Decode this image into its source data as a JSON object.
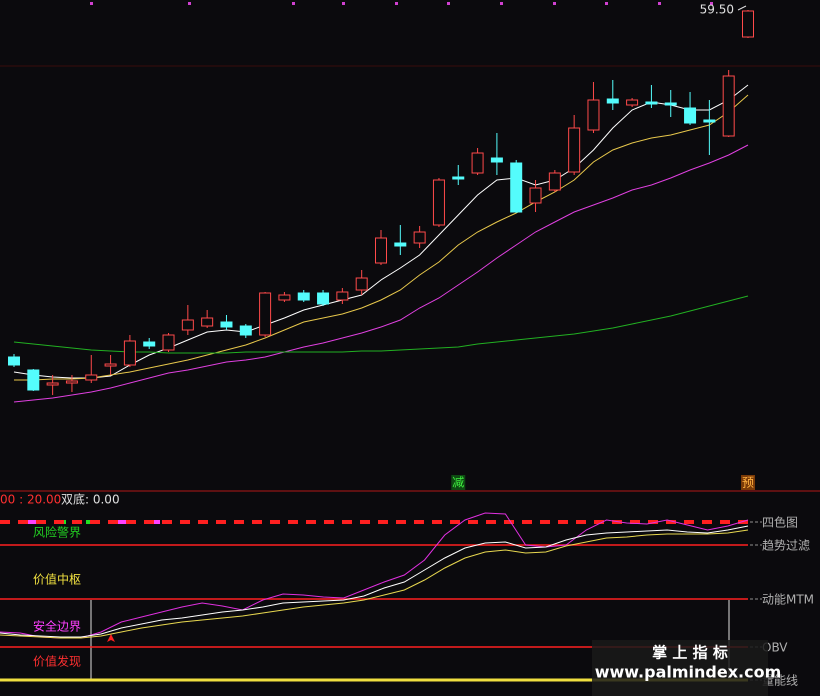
{
  "chart_data": [
    {
      "type": "candlestick",
      "categories": [
        null,
        null,
        null,
        null,
        null,
        null,
        null,
        null,
        null,
        null,
        null,
        null,
        null,
        null,
        null,
        null,
        null,
        null,
        null,
        null,
        null,
        null,
        null,
        null,
        null,
        null,
        null,
        null,
        null,
        null,
        null,
        null,
        null,
        null,
        null,
        null,
        null,
        null,
        null
      ],
      "open": [
        42.15,
        41.5,
        40.75,
        40.85,
        41.0,
        41.7,
        41.75,
        42.9,
        42.5,
        43.5,
        43.7,
        43.9,
        43.7,
        43.25,
        45.0,
        45.35,
        45.35,
        45.0,
        45.5,
        46.85,
        47.85,
        47.85,
        48.75,
        51.15,
        51.35,
        52.1,
        51.85,
        49.85,
        50.5,
        51.4,
        53.5,
        55.05,
        54.75,
        54.9,
        54.85,
        54.6,
        54.0,
        53.2,
        58.15
      ],
      "high": [
        42.3,
        41.55,
        41.25,
        41.25,
        42.25,
        42.25,
        43.25,
        43.1,
        43.35,
        44.75,
        44.5,
        44.25,
        43.8,
        45.4,
        45.4,
        45.5,
        45.5,
        45.6,
        46.5,
        48.5,
        48.75,
        48.7,
        51.1,
        51.75,
        52.6,
        53.35,
        52.0,
        51.0,
        51.5,
        54.25,
        55.9,
        56.0,
        55.1,
        55.75,
        55.5,
        55.4,
        55.0,
        56.5,
        59.5
      ],
      "low": [
        41.65,
        40.45,
        40.25,
        40.4,
        40.85,
        41.25,
        41.65,
        42.55,
        42.4,
        43.25,
        43.6,
        43.5,
        43.1,
        43.15,
        44.9,
        44.9,
        44.7,
        44.8,
        45.25,
        46.75,
        47.25,
        47.6,
        48.65,
        50.75,
        51.25,
        51.25,
        49.35,
        49.4,
        50.4,
        51.25,
        53.35,
        54.5,
        54.65,
        54.6,
        54.15,
        53.75,
        52.25,
        53.15,
        58.1
      ],
      "close": [
        41.75,
        40.5,
        40.85,
        40.95,
        41.25,
        41.8,
        42.95,
        42.7,
        43.25,
        44.0,
        44.1,
        43.65,
        43.25,
        45.35,
        45.25,
        45.0,
        44.8,
        45.4,
        46.1,
        48.1,
        47.7,
        48.4,
        51.0,
        51.05,
        52.35,
        51.9,
        49.4,
        50.6,
        51.35,
        53.6,
        55.0,
        54.85,
        55.0,
        54.8,
        54.75,
        53.85,
        53.9,
        56.2,
        59.45
      ],
      "ylim": [
        35.5,
        60
      ],
      "up_color": "#ff4a4a",
      "down_color": "#54fcfc",
      "series": [
        {
          "color": "#ffffff",
          "values": [
            41.4,
            41.25,
            41.15,
            41.1,
            41.1,
            41.2,
            41.75,
            42.25,
            42.6,
            43.0,
            43.4,
            43.5,
            43.4,
            43.75,
            44.1,
            44.5,
            44.75,
            45.0,
            45.25,
            46.0,
            46.6,
            47.25,
            48.25,
            49.25,
            50.25,
            51.0,
            51.1,
            50.75,
            51.0,
            51.6,
            52.5,
            53.6,
            54.5,
            54.9,
            54.75,
            54.5,
            54.5,
            55.0,
            55.75
          ]
        },
        {
          "color": "#e8c84c",
          "values": [
            41.0,
            41.0,
            41.05,
            41.05,
            41.1,
            41.25,
            41.4,
            41.6,
            41.8,
            42.0,
            42.25,
            42.5,
            42.75,
            43.1,
            43.5,
            43.9,
            44.1,
            44.3,
            44.6,
            45.0,
            45.5,
            46.25,
            46.9,
            47.75,
            48.4,
            48.9,
            49.35,
            49.9,
            50.4,
            51.0,
            51.9,
            52.5,
            52.85,
            53.1,
            53.25,
            53.5,
            53.75,
            54.4,
            55.25
          ]
        },
        {
          "color": "#e040e0",
          "values": [
            39.9,
            40.0,
            40.1,
            40.25,
            40.4,
            40.6,
            40.85,
            41.1,
            41.35,
            41.5,
            41.7,
            41.9,
            42.0,
            42.15,
            42.4,
            42.65,
            42.85,
            43.1,
            43.35,
            43.65,
            44.0,
            44.6,
            45.1,
            45.75,
            46.4,
            47.1,
            47.75,
            48.4,
            48.9,
            49.4,
            49.75,
            50.1,
            50.5,
            50.75,
            51.1,
            51.5,
            51.85,
            52.25,
            52.75
          ]
        },
        {
          "color": "#22b022",
          "values": [
            42.9,
            42.8,
            42.7,
            42.6,
            42.5,
            42.45,
            42.4,
            42.4,
            42.35,
            42.35,
            42.35,
            42.35,
            42.4,
            42.4,
            42.4,
            42.4,
            42.4,
            42.4,
            42.45,
            42.45,
            42.5,
            42.55,
            42.6,
            42.65,
            42.8,
            42.9,
            43.0,
            43.1,
            43.2,
            43.3,
            43.45,
            43.6,
            43.8,
            44.0,
            44.2,
            44.45,
            44.7,
            44.95,
            45.2
          ]
        }
      ],
      "max_label": {
        "value": 59.5,
        "label": "59.50"
      },
      "signals": [
        null,
        null,
        null,
        null,
        null,
        null,
        null,
        null,
        null,
        null,
        null,
        null,
        null,
        null,
        null,
        null,
        null,
        null,
        null,
        null,
        null,
        null,
        null,
        "减",
        null,
        null,
        null,
        null,
        null,
        null,
        null,
        null,
        null,
        null,
        null,
        null,
        null,
        null,
        "预"
      ]
    },
    {
      "type": "line",
      "header": [
        "00 : 20.00",
        "双底: 0.00"
      ],
      "zone_labels": [
        {
          "label": "风险警界",
          "color": "#22d022"
        },
        {
          "label": "价值中枢",
          "color": "#f0e040"
        },
        {
          "label": "安全边界",
          "color": "#ff40ff"
        },
        {
          "label": "价值发现",
          "color": "#ff3030"
        }
      ],
      "levels": [
        {
          "value": 158,
          "label": "四色图",
          "color": "#ff2020"
        },
        {
          "value": 135,
          "label": "趋势过滤",
          "color": "#ff2020"
        },
        {
          "value": 81,
          "label": "动能MTM",
          "color": "#ff2020"
        },
        {
          "value": 33,
          "label": "OBV",
          "color": "#ff2020"
        },
        {
          "value": 0,
          "label": "量能线",
          "color": "#f0e040"
        }
      ],
      "ylim": [
        0,
        190
      ],
      "categories": [
        null,
        null,
        null,
        null,
        null,
        null,
        null,
        null,
        null,
        null,
        null,
        null,
        null,
        null,
        null,
        null,
        null,
        null,
        null,
        null,
        null,
        null,
        null,
        null,
        null,
        null,
        null,
        null,
        null,
        null,
        null,
        null,
        null,
        null,
        null,
        null,
        null,
        null
      ],
      "series": [
        {
          "color": "#e030e0",
          "values": [
            48,
            47,
            43,
            42,
            42,
            48,
            58,
            63,
            68,
            73,
            77,
            74,
            70,
            80,
            86,
            85,
            83,
            82,
            90,
            98,
            105,
            120,
            145,
            160,
            167,
            166,
            135,
            133,
            135,
            150,
            160,
            157,
            156,
            160,
            155,
            150,
            154,
            160
          ]
        },
        {
          "color": "#ffffff",
          "values": [
            47,
            45,
            44,
            43,
            43,
            46,
            52,
            56,
            60,
            62,
            65,
            68,
            70,
            73,
            77,
            78,
            79,
            80,
            84,
            92,
            98,
            110,
            122,
            132,
            137,
            138,
            132,
            133,
            140,
            145,
            147,
            148,
            149,
            150,
            148,
            147,
            150,
            154
          ]
        },
        {
          "color": "#e8d850",
          "values": [
            45,
            44,
            43,
            42,
            42,
            44,
            48,
            52,
            55,
            58,
            60,
            62,
            64,
            67,
            70,
            73,
            75,
            77,
            80,
            85,
            90,
            100,
            112,
            122,
            128,
            130,
            127,
            128,
            134,
            138,
            142,
            143,
            145,
            146,
            146,
            146,
            147,
            150
          ]
        }
      ]
    }
  ],
  "watermark": {
    "title": "掌 上 指 标",
    "url": "www.palmindex.com"
  }
}
